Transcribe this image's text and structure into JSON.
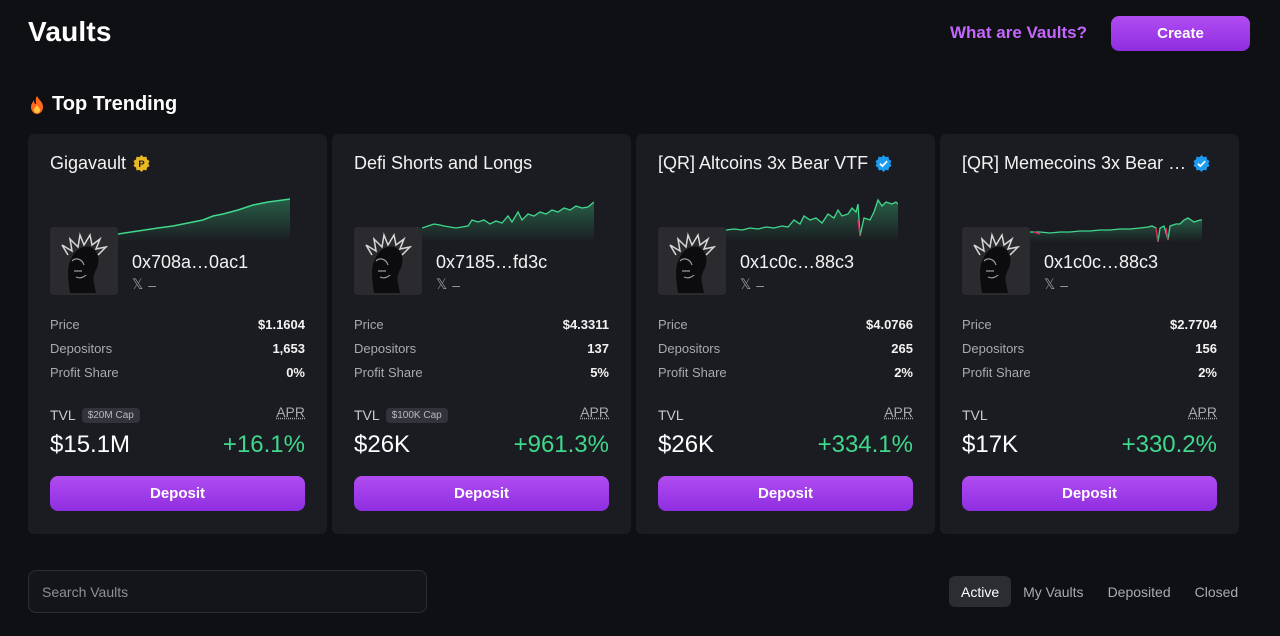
{
  "header": {
    "title": "Vaults",
    "what_link": "What are Vaults?",
    "create_label": "Create"
  },
  "section": {
    "title": "Top Trending",
    "icon": "fire-icon"
  },
  "cards": [
    {
      "title": "Gigavault",
      "badge": "gold-p-badge-icon",
      "address": "0x708a…0ac1",
      "social": "–",
      "price_label": "Price",
      "price": "$1.1604",
      "depositors_label": "Depositors",
      "depositors": "1,653",
      "profit_label": "Profit Share",
      "profit": "0%",
      "tvl_label": "TVL",
      "cap": "$20M Cap",
      "apr_label": "APR",
      "tvl": "$15.1M",
      "apr": "+16.1%",
      "deposit_label": "Deposit"
    },
    {
      "title": "Defi Shorts and Longs",
      "badge": "",
      "address": "0x7185…fd3c",
      "social": "–",
      "price_label": "Price",
      "price": "$4.3311",
      "depositors_label": "Depositors",
      "depositors": "137",
      "profit_label": "Profit Share",
      "profit": "5%",
      "tvl_label": "TVL",
      "cap": "$100K Cap",
      "apr_label": "APR",
      "tvl": "$26K",
      "apr": "+961.3%",
      "deposit_label": "Deposit"
    },
    {
      "title": "[QR] Altcoins 3x Bear VTF",
      "badge": "verified-badge-icon",
      "address": "0x1c0c…88c3",
      "social": "–",
      "price_label": "Price",
      "price": "$4.0766",
      "depositors_label": "Depositors",
      "depositors": "265",
      "profit_label": "Profit Share",
      "profit": "2%",
      "tvl_label": "TVL",
      "cap": "",
      "apr_label": "APR",
      "tvl": "$26K",
      "apr": "+334.1%",
      "deposit_label": "Deposit"
    },
    {
      "title": "[QR] Memecoins 3x Bear …",
      "badge": "verified-badge-icon",
      "address": "0x1c0c…88c3",
      "social": "–",
      "price_label": "Price",
      "price": "$2.7704",
      "depositors_label": "Depositors",
      "depositors": "156",
      "profit_label": "Profit Share",
      "profit": "2%",
      "tvl_label": "TVL",
      "cap": "",
      "apr_label": "APR",
      "tvl": "$17K",
      "apr": "+330.2%",
      "deposit_label": "Deposit"
    }
  ],
  "search": {
    "placeholder": "Search Vaults"
  },
  "tabs": [
    {
      "label": "Active",
      "active": true
    },
    {
      "label": "My Vaults",
      "active": false
    },
    {
      "label": "Deposited",
      "active": false
    },
    {
      "label": "Closed",
      "active": false
    }
  ],
  "colors": {
    "accent": "#a63ff0",
    "positive": "#3fd88c",
    "negative": "#e0245e",
    "link": "#c566ff",
    "verified": "#1d9bf0",
    "gold": "#e8b923"
  }
}
